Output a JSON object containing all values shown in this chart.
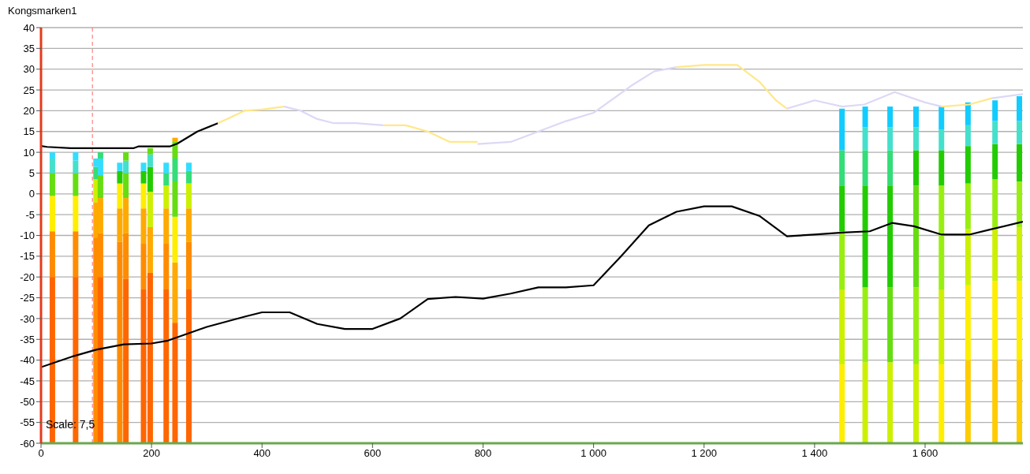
{
  "chart_data": {
    "type": "line",
    "title": "Kongsmarken1",
    "annotations": [
      "Scale: 7,5"
    ],
    "xlim": [
      0,
      1777
    ],
    "ylim": [
      -60,
      40
    ],
    "xticks": [
      0,
      200,
      400,
      600,
      800,
      {
        "value": 1000,
        "label": "1 000"
      },
      {
        "value": 1200,
        "label": "1 200"
      },
      {
        "value": 1400,
        "label": "1 400"
      },
      {
        "value": 1600,
        "label": "1 600"
      }
    ],
    "yticks": [
      -60,
      -55,
      -50,
      -45,
      -40,
      -35,
      -30,
      -25,
      -20,
      -15,
      -10,
      -5,
      0,
      5,
      10,
      15,
      20,
      25,
      30,
      35,
      40
    ],
    "grid": "y",
    "legend": false,
    "marker": "none",
    "line_style": "solid",
    "ref_lines": [
      {
        "axis": "x",
        "value": 93,
        "color": "#ff6666",
        "line_style": "dashed"
      }
    ],
    "series": [
      {
        "type": "bar",
        "x": [
          21,
          63,
          100,
          108,
          143,
          154,
          186,
          198,
          227,
          243,
          268,
          1450,
          1492,
          1537,
          1584,
          1630,
          1678,
          1727,
          1771
        ],
        "base": [
          -60,
          -60,
          -60,
          -60,
          -60,
          -60,
          -60,
          -60,
          -60,
          -60,
          -60,
          -60,
          -60,
          -60,
          -60,
          -60,
          -60,
          -60,
          -60
        ],
        "values": [
          40,
          40,
          49.5,
          40,
          48.5,
          39.5,
          37,
          41,
          37,
          29,
          37,
          19,
          19.5,
          19.5,
          19,
          19,
          20,
          20,
          20
        ],
        "colors": [
          "#ff6600",
          "#ff6600",
          "#ff8c00",
          "#ff6600",
          "#ff8c00",
          "#ff6600",
          "#ff6600",
          "#ff6600",
          "#ff6600",
          "#ff6600",
          "#ff6600",
          "#ffee00",
          "#ccf000",
          "#ccf000",
          "#ccf000",
          "#ffee00",
          "#ffcc00",
          "#ffcc00",
          "#ffcc00"
        ]
      },
      {
        "type": "bar",
        "x": [
          21,
          63,
          100,
          108,
          143,
          154,
          186,
          198,
          227,
          243,
          268,
          1450,
          1492,
          1537,
          1584,
          1630,
          1678,
          1727,
          1771
        ],
        "base": [
          -20,
          -20,
          -10.5,
          -20,
          -11.5,
          -20.5,
          -23,
          -19,
          -23,
          -31,
          -23,
          -41,
          -40.5,
          -40.5,
          -41,
          -41,
          -40,
          -40,
          -40
        ],
        "values": [
          11,
          11,
          8.5,
          10.5,
          8,
          11,
          11,
          11,
          11,
          14.5,
          11.5,
          18,
          18,
          18,
          18.5,
          18,
          18,
          19,
          19
        ],
        "colors": [
          "#ff8c00",
          "#ff8c00",
          "#ffaa00",
          "#ff8c00",
          "#ffaa00",
          "#ff8c00",
          "#ff8c00",
          "#ffaa00",
          "#ff8c00",
          "#ffaa00",
          "#ff8c00",
          "#ccf000",
          "#99ee11",
          "#66dd11",
          "#99ee11",
          "#ccf000",
          "#ffee00",
          "#ffee00",
          "#ffee00"
        ]
      },
      {
        "type": "bar",
        "x": [
          21,
          63,
          100,
          108,
          143,
          154,
          186,
          198,
          227,
          243,
          268,
          1450,
          1492,
          1537,
          1584,
          1630,
          1678,
          1727,
          1771
        ],
        "base": [
          -9,
          -9,
          -2,
          -9.5,
          -3.5,
          -9.5,
          -12,
          -8,
          -12,
          -16.5,
          -11.5,
          -23,
          -22.5,
          -22.5,
          -22.5,
          -23,
          -22,
          -21,
          -21
        ],
        "values": [
          8.5,
          8.5,
          5.5,
          8.5,
          6,
          8.5,
          8.5,
          8.5,
          8.5,
          11,
          8,
          14,
          24.5,
          24.5,
          24.5,
          25,
          13.5,
          13,
          13
        ],
        "colors": [
          "#ffee00",
          "#ffee00",
          "#ccf000",
          "#ffaa00",
          "#ffee00",
          "#ffaa00",
          "#ffaa00",
          "#ccf000",
          "#ffaa00",
          "#ffee00",
          "#ffaa00",
          "#99ee11",
          "#22cc00",
          "#22cc00",
          "#66dd11",
          "#99ee11",
          "#ccf000",
          "#ccf000",
          "#ccf000"
        ]
      },
      {
        "type": "bar",
        "x": [
          21,
          63,
          100,
          108,
          143,
          154,
          186,
          198,
          227,
          243,
          268,
          1450,
          1492,
          1537,
          1584,
          1630,
          1678,
          1727,
          1771
        ],
        "base": [
          -0.5,
          -0.5,
          3.5,
          -1,
          2.5,
          -1,
          -3.5,
          0.5,
          -3.5,
          -5.5,
          -3.5,
          -9,
          2,
          2,
          2,
          2,
          -8.5,
          -8,
          -8
        ],
        "values": [
          5.5,
          5.5,
          3,
          5.5,
          3,
          6,
          6,
          6,
          5.5,
          8.5,
          6,
          11,
          8.5,
          8.5,
          8.5,
          8.5,
          11,
          11.5,
          11
        ],
        "colors": [
          "#66dd11",
          "#66dd11",
          "#33dd77",
          "#66dd11",
          "#22cc00",
          "#66dd11",
          "#ffee00",
          "#22cc00",
          "#ccf000",
          "#66dd11",
          "#ccf000",
          "#22cc00",
          "#33dd77",
          "#33dd77",
          "#22cc00",
          "#22cc00",
          "#99ee11",
          "#99ee11",
          "#99ee11"
        ]
      },
      {
        "type": "bar",
        "x": [
          21,
          63,
          100,
          108,
          143,
          154,
          186,
          198,
          227,
          243,
          268,
          1450,
          1492,
          1537,
          1584,
          1630,
          1678,
          1727,
          1771
        ],
        "base": [
          5,
          5,
          6.5,
          4.5,
          5.5,
          5,
          2.5,
          6.5,
          2,
          3,
          2.5,
          2,
          10.5,
          10.5,
          10.5,
          10.5,
          2.5,
          3.5,
          3
        ],
        "values": [
          3.5,
          3,
          2,
          4,
          2,
          3,
          3,
          3,
          3,
          5.5,
          3,
          8.5,
          5.5,
          5.5,
          5.5,
          5,
          9,
          8.5,
          9
        ],
        "colors": [
          "#44e0cc",
          "#44e0cc",
          "#33ddff",
          "#33ddff",
          "#33ddff",
          "#44e0cc",
          "#22cc00",
          "#44e0cc",
          "#33dd77",
          "#33dd77",
          "#33dd77",
          "#33dd77",
          "#44e0cc",
          "#44e0cc",
          "#44e0cc",
          "#44e0cc",
          "#22cc00",
          "#22cc00",
          "#22cc00"
        ]
      },
      {
        "type": "bar",
        "x": [
          21,
          63,
          108,
          154,
          186,
          198,
          227,
          243,
          268,
          1450,
          1492,
          1537,
          1584,
          1630,
          1678,
          1727,
          1771
        ],
        "base": [
          8.5,
          8,
          8.5,
          8,
          5.5,
          9.5,
          5,
          8.5,
          5.5,
          10.5,
          16,
          16,
          16,
          15.5,
          11.5,
          12,
          12
        ],
        "values": [
          1.5,
          2,
          1.5,
          2,
          2,
          1.5,
          2.5,
          4,
          2,
          10,
          5,
          5,
          5,
          5.5,
          5,
          5.5,
          5.5
        ],
        "colors": [
          "#33ddff",
          "#33ddff",
          "#33dd77",
          "#66dd11",
          "#33ddff",
          "#66dd11",
          "#33ddff",
          "#66dd11",
          "#33ddff",
          "#11ccff",
          "#11ccff",
          "#11ccff",
          "#11ccff",
          "#11ccff",
          "#44e0cc",
          "#44e0cc",
          "#44e0cc"
        ]
      },
      {
        "type": "bar",
        "x": [
          243,
          1678,
          1727,
          1771
        ],
        "base": [
          12.5,
          16.5,
          17.5,
          17.5
        ],
        "values": [
          1,
          5.5,
          5,
          6
        ],
        "colors": [
          "#ffaa00",
          "#11ccff",
          "#11ccff",
          "#11ccff"
        ]
      },
      {
        "color": "#000000",
        "x": [
          0,
          11,
          54,
          168,
          176,
          233,
          247,
          283,
          320
        ],
        "values": [
          11.5,
          11.3,
          11,
          11,
          11.4,
          11.4,
          12.1,
          15,
          17
        ]
      },
      {
        "color": "#ffe88a",
        "x": [
          320,
          354,
          368,
          400,
          440
        ],
        "values": [
          17,
          19.1,
          20,
          20.3,
          21
        ]
      },
      {
        "color": "#ddd8f5",
        "x": [
          440,
          470,
          500,
          530,
          570,
          620
        ],
        "values": [
          21,
          20,
          18,
          17,
          17,
          16.5
        ]
      },
      {
        "color": "#ffe88a",
        "x": [
          620,
          660,
          700,
          740,
          790
        ],
        "values": [
          16.5,
          16.5,
          15,
          12.5,
          12.5
        ]
      },
      {
        "color": "#ddd8f5",
        "x": [
          790,
          850,
          900,
          950,
          1000,
          1068,
          1110,
          1150
        ],
        "values": [
          12,
          12.5,
          15,
          17.5,
          19.5,
          26,
          29.5,
          30.5
        ]
      },
      {
        "color": "#ffe88a",
        "x": [
          1150,
          1200,
          1260,
          1300,
          1330,
          1350
        ],
        "values": [
          30.5,
          31,
          31,
          27,
          22.5,
          20.5
        ]
      },
      {
        "color": "#ddd8f5",
        "x": [
          1350,
          1400,
          1450,
          1490,
          1545,
          1600,
          1630
        ],
        "values": [
          20.5,
          22.5,
          21,
          21.5,
          24.5,
          22,
          21
        ]
      },
      {
        "color": "#ffe88a",
        "x": [
          1630,
          1680,
          1720
        ],
        "values": [
          21,
          21.5,
          23
        ]
      },
      {
        "color": "#ddd8f5",
        "x": [
          1720,
          1777
        ],
        "values": [
          23,
          24
        ]
      },
      {
        "color": "#000000",
        "x": [
          0,
          60,
          100,
          150,
          200,
          230,
          300,
          370,
          400,
          450,
          500,
          550,
          600,
          650,
          700,
          750,
          800,
          850,
          900,
          950,
          1000,
          1050,
          1100,
          1150,
          1200,
          1250,
          1300,
          1350,
          1400,
          1450,
          1500,
          1540,
          1580,
          1630,
          1680,
          1720,
          1777
        ],
        "values": [
          -41.7,
          -39,
          -37.5,
          -36.2,
          -36,
          -35.3,
          -32,
          -29.5,
          -28.5,
          -28.5,
          -31.3,
          -32.5,
          -32.5,
          -30,
          -25.3,
          -24.8,
          -25.2,
          -24,
          -22.5,
          -22.5,
          -22,
          -15,
          -7.6,
          -4.3,
          -3,
          -3,
          -5.3,
          -10.2,
          -9.8,
          -9.3,
          -9,
          -7,
          -7.8,
          -9.8,
          -9.8,
          -8.5,
          -6.7
        ]
      }
    ]
  }
}
